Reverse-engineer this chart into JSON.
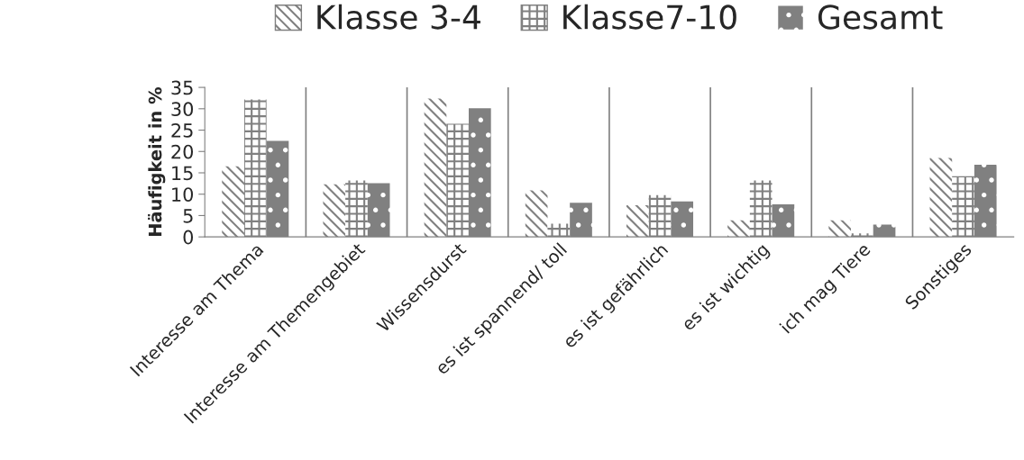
{
  "chart_data": {
    "type": "bar",
    "ylabel": "Häufigkeit in %",
    "categories": [
      "Interesse am Thema",
      "Interesse am Themengebiet",
      "Wissensdurst",
      "es ist spannend/ toll",
      "es ist gefährlich",
      "es ist wichtig",
      "ich mag Tiere",
      "Sonstiges"
    ],
    "series": [
      {
        "name": "Klasse 3-4",
        "color": "#808080",
        "values": [
          16.5,
          12.3,
          32.4,
          10.9,
          7.4,
          3.9,
          3.9,
          18.5
        ]
      },
      {
        "name": "Klasse7-10",
        "color": "#808080",
        "values": [
          32.2,
          13.2,
          26.5,
          3.1,
          9.8,
          13.2,
          0.8,
          14.2
        ]
      },
      {
        "name": "Gesamt",
        "color": "#808080",
        "values": [
          22.5,
          12.6,
          30.1,
          8.0,
          8.3,
          7.6,
          2.9,
          16.9
        ]
      }
    ],
    "ylim": [
      0,
      35
    ],
    "yticks": [
      0,
      5,
      10,
      15,
      20,
      25,
      30,
      35
    ],
    "grid": "x",
    "legend": "top"
  }
}
